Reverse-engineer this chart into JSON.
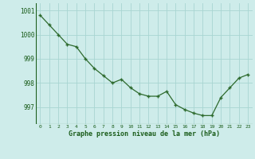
{
  "x": [
    0,
    1,
    2,
    3,
    4,
    5,
    6,
    7,
    8,
    9,
    10,
    11,
    12,
    13,
    14,
    15,
    16,
    17,
    18,
    19,
    20,
    21,
    22,
    23
  ],
  "y": [
    1000.8,
    1000.4,
    1000.0,
    999.6,
    999.5,
    999.0,
    998.6,
    998.3,
    998.0,
    998.15,
    997.8,
    997.55,
    997.45,
    997.45,
    997.65,
    997.1,
    996.9,
    996.75,
    996.65,
    996.65,
    997.4,
    997.8,
    998.2,
    998.35
  ],
  "line_color": "#2d6a2d",
  "marker_color": "#2d6a2d",
  "bg_color": "#ceecea",
  "grid_color": "#a8d5d2",
  "tick_label_color": "#1a5c1a",
  "xlabel": "Graphe pression niveau de la mer (hPa)",
  "ylim": [
    996.3,
    1001.3
  ],
  "yticks": [
    997,
    998,
    999,
    1000,
    1001
  ],
  "xticks": [
    0,
    1,
    2,
    3,
    4,
    5,
    6,
    7,
    8,
    9,
    10,
    11,
    12,
    13,
    14,
    15,
    16,
    17,
    18,
    19,
    20,
    21,
    22,
    23
  ]
}
